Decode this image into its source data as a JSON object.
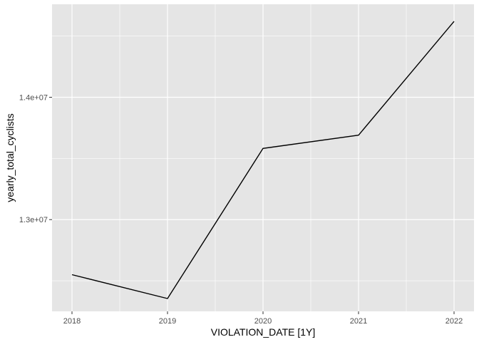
{
  "chart_data": {
    "type": "line",
    "title": "",
    "xlabel": "VIOLATION_DATE [1Y]",
    "ylabel": "yearly_total_cyclists",
    "x": [
      "2018",
      "2019",
      "2020",
      "2021",
      "2022"
    ],
    "series": [
      {
        "values": [
          12550000,
          12355000,
          13582000,
          13690000,
          14620000
        ]
      }
    ],
    "x_ticks": [
      "2018",
      "2019",
      "2020",
      "2021",
      "2022"
    ],
    "y_ticks": [
      {
        "value": 13000000,
        "label": "1.3e+07"
      },
      {
        "value": 14000000,
        "label": "1.4e+07"
      }
    ],
    "ylim": [
      12250000,
      14760000
    ],
    "grid": true,
    "legend": "none",
    "colors": {
      "panel": "#e5e5e5",
      "grid": "#ffffff",
      "line": "#000000",
      "tick_text": "#4d4d4d"
    }
  }
}
